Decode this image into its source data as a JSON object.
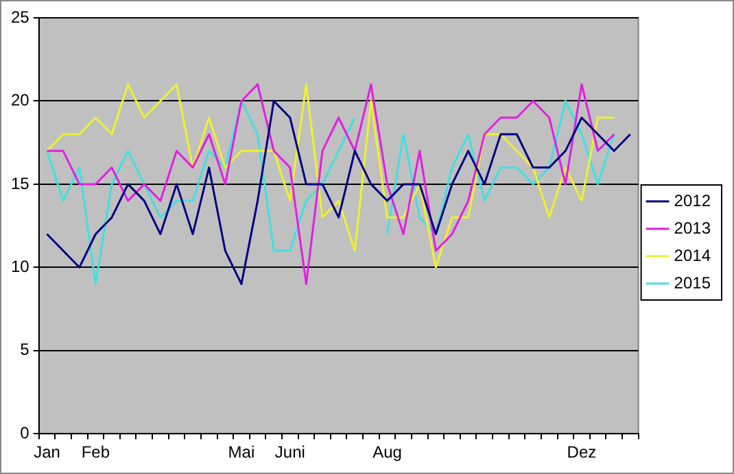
{
  "chart_data": {
    "type": "line",
    "categories": [
      "Jan",
      null,
      null,
      "Feb",
      null,
      null,
      null,
      null,
      null,
      null,
      null,
      null,
      "Mai",
      null,
      null,
      "Juni",
      null,
      null,
      null,
      null,
      null,
      "Aug",
      null,
      null,
      null,
      null,
      null,
      null,
      null,
      null,
      null,
      null,
      null,
      "Dez",
      null,
      null,
      null
    ],
    "series": [
      {
        "name": "2012",
        "color": "#000080",
        "values": [
          12,
          11,
          10,
          12,
          13,
          15,
          14,
          12,
          15,
          12,
          16,
          11,
          9,
          14,
          20,
          19,
          15,
          15,
          13,
          17,
          15,
          14,
          15,
          15,
          12,
          15,
          17,
          15,
          18,
          18,
          16,
          16,
          17,
          19,
          18,
          17,
          18
        ]
      },
      {
        "name": "2013",
        "color": "#e020e0",
        "values": [
          17,
          17,
          15,
          15,
          16,
          14,
          15,
          14,
          17,
          16,
          18,
          15,
          20,
          21,
          17,
          16,
          9,
          17,
          19,
          17,
          21,
          15,
          12,
          17,
          11,
          12,
          14,
          18,
          19,
          19,
          20,
          19,
          15,
          21,
          17,
          18,
          null
        ]
      },
      {
        "name": "2014",
        "color": "#f0f030",
        "values": [
          17,
          18,
          18,
          19,
          18,
          21,
          19,
          20,
          21,
          16,
          19,
          16,
          17,
          17,
          17,
          14,
          21,
          13,
          14,
          11,
          20,
          13,
          13,
          15,
          10,
          13,
          13,
          18,
          18,
          17,
          16,
          13,
          16,
          14,
          19,
          19,
          null
        ]
      },
      {
        "name": "2015",
        "color": "#40e0e0",
        "values": [
          17,
          14,
          16,
          9,
          15,
          17,
          15,
          13,
          14,
          14,
          17,
          16,
          20,
          18,
          11,
          11,
          14,
          15,
          17,
          19,
          null,
          12,
          18,
          13,
          12,
          16,
          18,
          14,
          16,
          16,
          15,
          16,
          20,
          18,
          15,
          18,
          null
        ]
      }
    ],
    "ylim": [
      0,
      25
    ],
    "yticks": [
      0,
      5,
      10,
      15,
      20,
      25
    ],
    "grid": "y",
    "legend": "right",
    "marker": "none",
    "line_style": "solid"
  }
}
